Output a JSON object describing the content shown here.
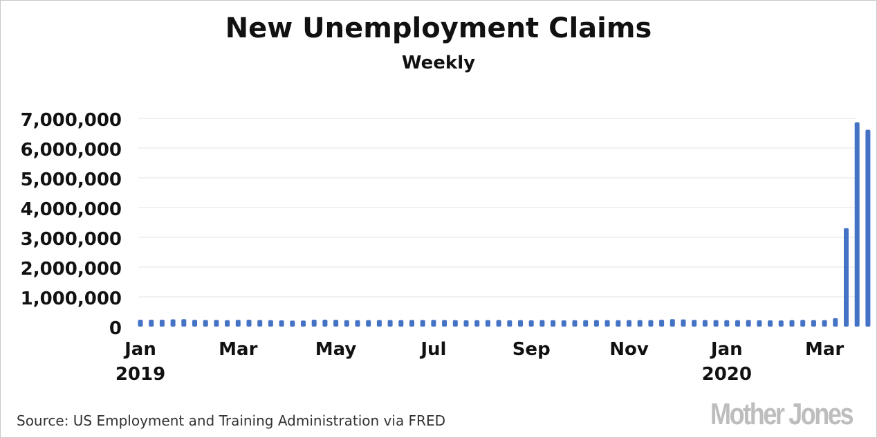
{
  "chart_data": {
    "type": "bar",
    "title": "New Unemployment Claims",
    "subtitle": "Weekly",
    "ylim": [
      0,
      7000000
    ],
    "yticks": [
      "0",
      "1,000,000",
      "2,000,000",
      "3,000,000",
      "4,000,000",
      "5,000,000",
      "6,000,000",
      "7,000,000"
    ],
    "xticks": [
      {
        "month": "Jan",
        "year": "2019",
        "index": 0
      },
      {
        "month": "Mar",
        "year": "",
        "index": 9
      },
      {
        "month": "May",
        "year": "",
        "index": 18
      },
      {
        "month": "Jul",
        "year": "",
        "index": 27
      },
      {
        "month": "Sep",
        "year": "",
        "index": 36
      },
      {
        "month": "Nov",
        "year": "",
        "index": 45
      },
      {
        "month": "Jan",
        "year": "2020",
        "index": 54
      },
      {
        "month": "Mar",
        "year": "",
        "index": 63
      }
    ],
    "values": [
      231000,
      229000,
      230000,
      245000,
      250000,
      228000,
      222000,
      224000,
      216000,
      227000,
      229000,
      221000,
      216000,
      209000,
      201000,
      205000,
      232000,
      233000,
      228000,
      216000,
      214000,
      218000,
      220000,
      221000,
      217000,
      220000,
      221000,
      224000,
      222000,
      218000,
      212000,
      215000,
      219000,
      222000,
      213000,
      217000,
      212000,
      218000,
      214000,
      210000,
      215000,
      216000,
      218000,
      218000,
      215000,
      219000,
      217000,
      219000,
      230000,
      250000,
      240000,
      224000,
      221000,
      217000,
      215000,
      216000,
      220000,
      213000,
      210000,
      206000,
      217000,
      224000,
      217000,
      219000,
      282000,
      3307000,
      6867000,
      6615000
    ],
    "grid": true,
    "bar_color": "#4472c4"
  },
  "footer": {
    "source": "Source: US Employment and Training Administration via FRED",
    "logo": "Mother Jones"
  }
}
